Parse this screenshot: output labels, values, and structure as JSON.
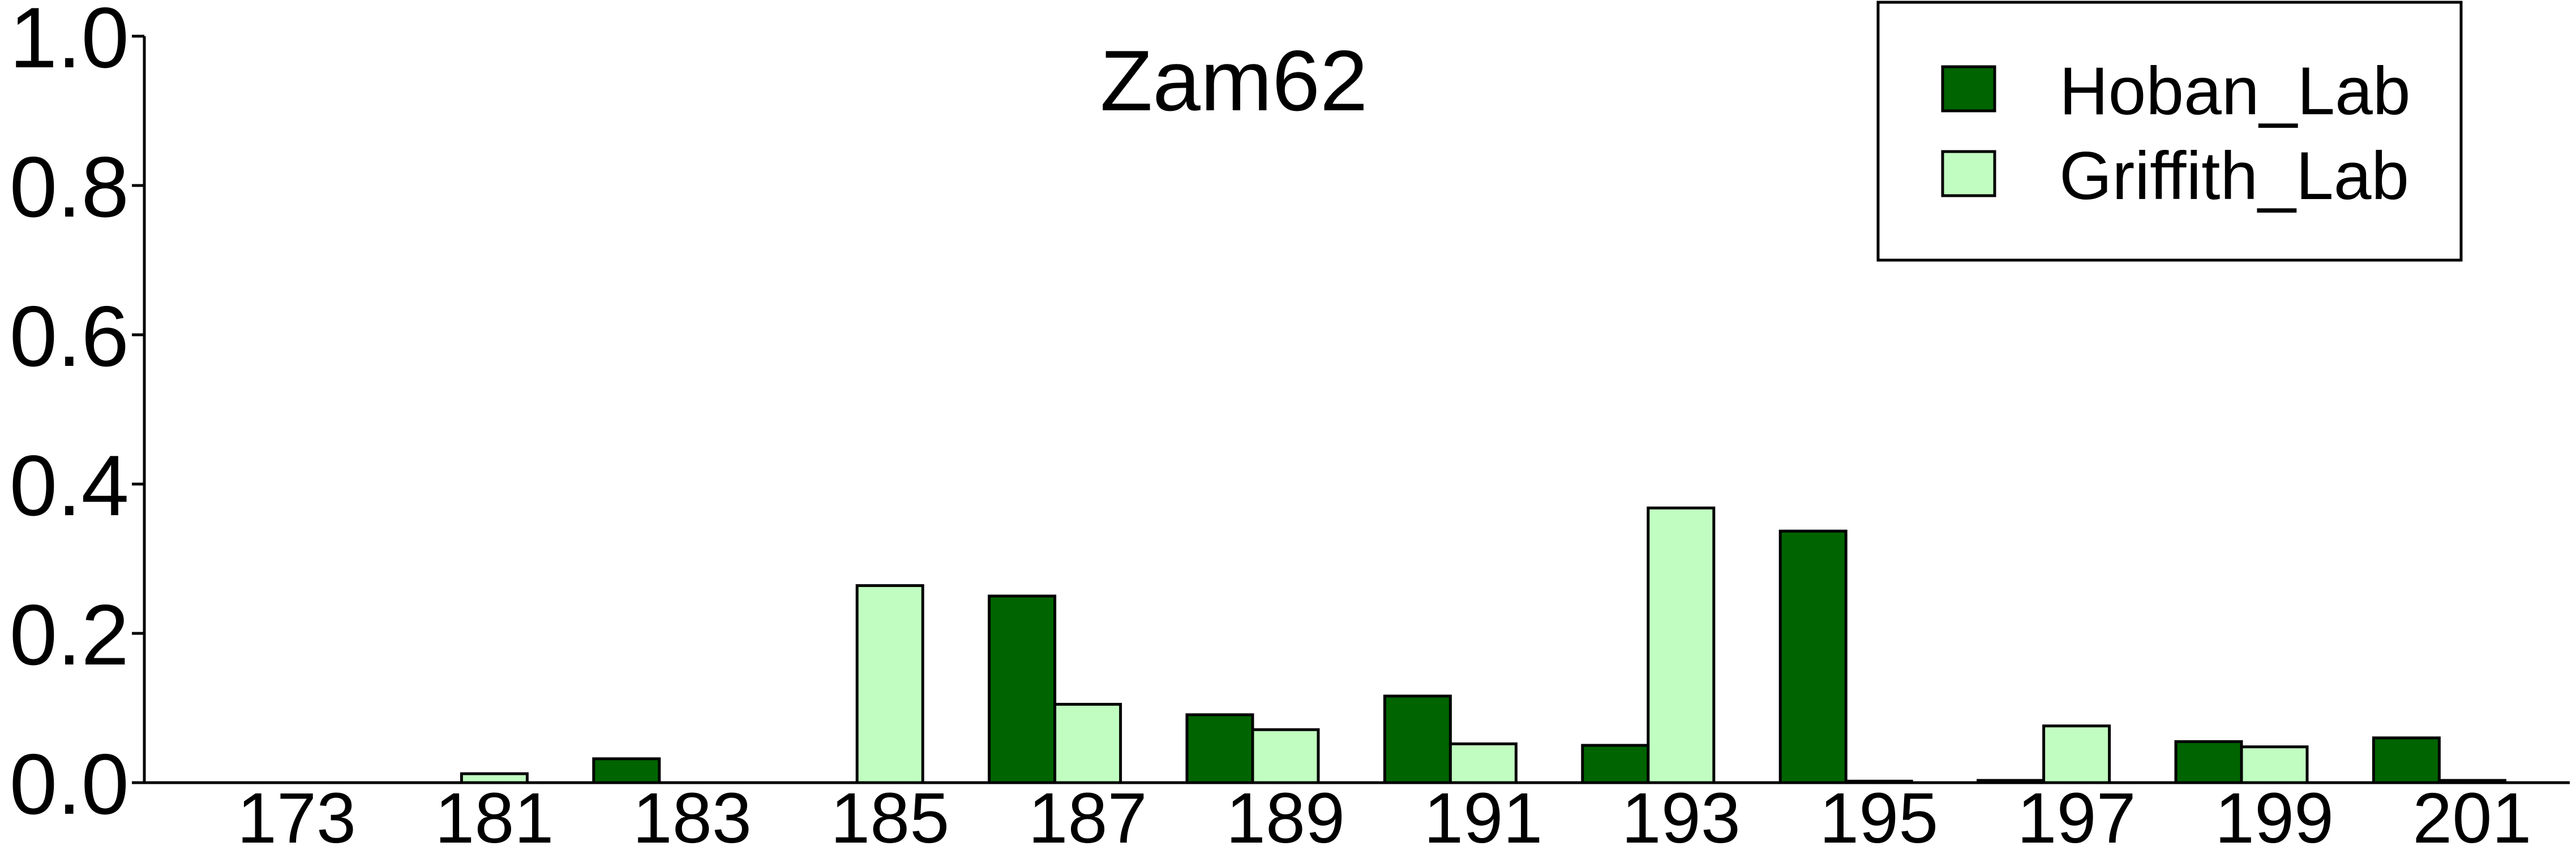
{
  "chart_data": {
    "type": "bar",
    "title": "Zam62",
    "xlabel": "",
    "ylabel": "",
    "categories": [
      "173",
      "181",
      "183",
      "185",
      "187",
      "189",
      "191",
      "193",
      "195",
      "197",
      "199",
      "201"
    ],
    "series": [
      {
        "name": "Hoban_Lab",
        "color": "#006400",
        "values": [
          0.0,
          0.0,
          0.032,
          0.0,
          0.25,
          0.091,
          0.116,
          0.05,
          0.337,
          0.003,
          0.055,
          0.06
        ]
      },
      {
        "name": "Griffith_Lab",
        "color": "#c1fdc1",
        "values": [
          0.0,
          0.012,
          0.0,
          0.264,
          0.105,
          0.071,
          0.052,
          0.368,
          0.002,
          0.076,
          0.048,
          0.003
        ]
      }
    ],
    "ylim": [
      0.0,
      1.0
    ],
    "yticks": [
      "0.0",
      "0.2",
      "0.4",
      "0.6",
      "0.8",
      "1.0"
    ],
    "grid": false,
    "legend_position": "top-right"
  }
}
